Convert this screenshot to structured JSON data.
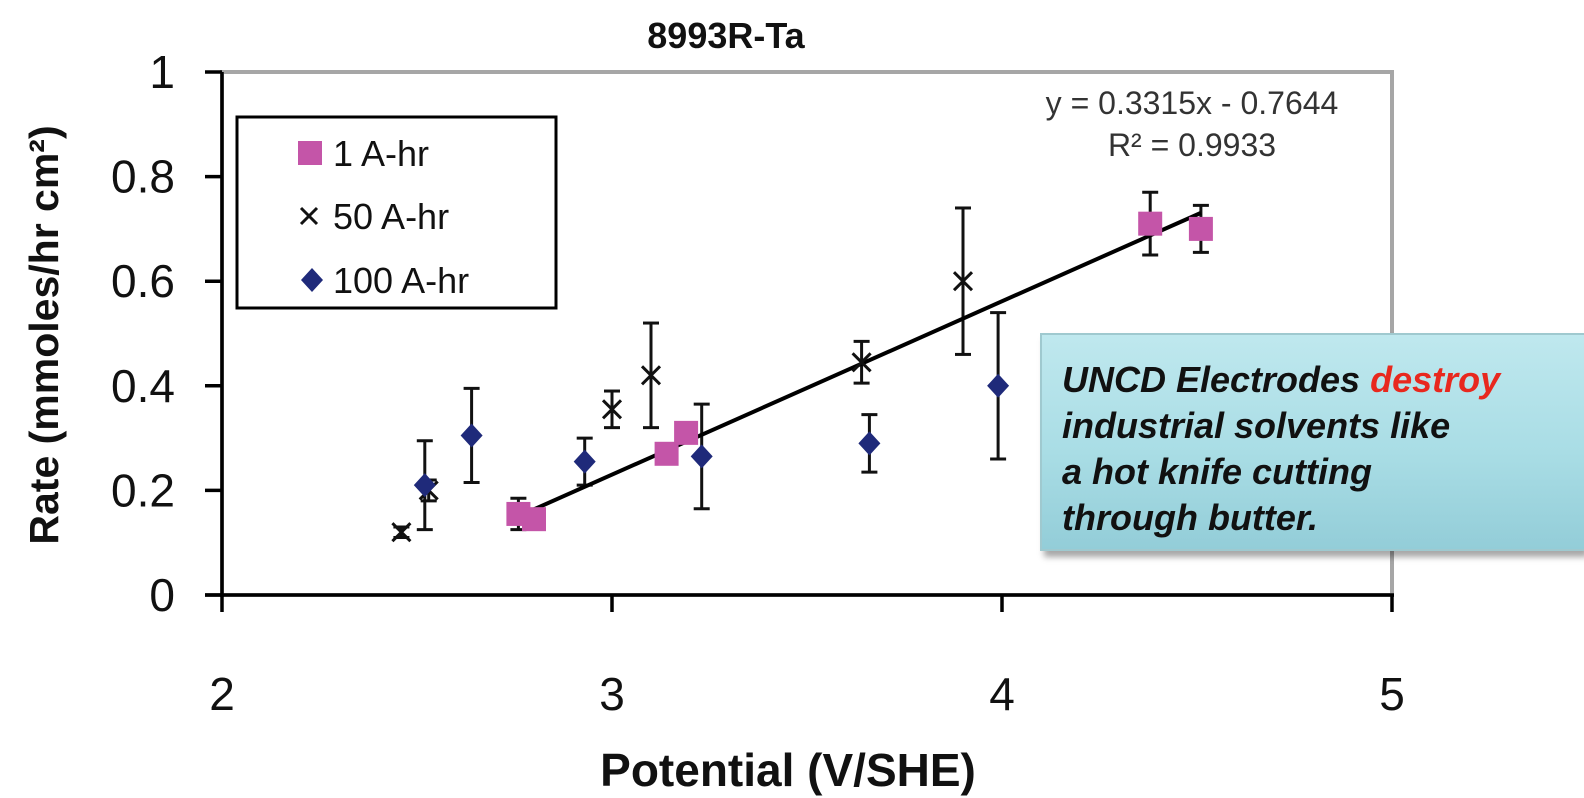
{
  "chart_data": {
    "type": "scatter",
    "title": "8993R-Ta",
    "xlabel": "Potential (V/SHE)",
    "ylabel": "Rate (mmoles/hr cm²)",
    "xlim": [
      2,
      5
    ],
    "ylim": [
      0,
      1
    ],
    "x_ticks": [
      "2",
      "3",
      "4",
      "5"
    ],
    "y_ticks": [
      "0",
      "0.2",
      "0.4",
      "0.6",
      "0.8",
      "1"
    ],
    "grid": false,
    "legend_position": "top-left",
    "series": [
      {
        "name": "1 A-hr",
        "marker": "square",
        "color": "#c455a8",
        "points": [
          {
            "x": 2.76,
            "y": 0.155,
            "err": 0.03
          },
          {
            "x": 2.8,
            "y": 0.145,
            "err": 0
          },
          {
            "x": 3.14,
            "y": 0.27,
            "err": 0
          },
          {
            "x": 3.19,
            "y": 0.31,
            "err": 0
          },
          {
            "x": 4.38,
            "y": 0.71,
            "err": 0.06
          },
          {
            "x": 4.51,
            "y": 0.7,
            "err": 0.045
          }
        ]
      },
      {
        "name": "50 A-hr",
        "marker": "x",
        "color": "#111111",
        "points": [
          {
            "x": 2.46,
            "y": 0.12,
            "err": 0.01
          },
          {
            "x": 2.53,
            "y": 0.2,
            "err": 0.02
          },
          {
            "x": 3.0,
            "y": 0.355,
            "err": 0.035
          },
          {
            "x": 3.1,
            "y": 0.42,
            "err": 0.1
          },
          {
            "x": 3.64,
            "y": 0.445,
            "err": 0.04
          },
          {
            "x": 3.9,
            "y": 0.6,
            "err": 0.14
          }
        ]
      },
      {
        "name": "100 A-hr",
        "marker": "diamond",
        "color": "#1f2a7a",
        "points": [
          {
            "x": 2.52,
            "y": 0.21,
            "err": 0.085
          },
          {
            "x": 2.64,
            "y": 0.305,
            "err": 0.09
          },
          {
            "x": 2.93,
            "y": 0.255,
            "err": 0.045
          },
          {
            "x": 3.23,
            "y": 0.265,
            "err": 0.1
          },
          {
            "x": 3.66,
            "y": 0.29,
            "err": 0.055
          },
          {
            "x": 3.99,
            "y": 0.4,
            "err": 0.14
          }
        ]
      }
    ],
    "trendline": {
      "slope": 0.3315,
      "intercept": -0.7644,
      "x_range": [
        2.76,
        4.51
      ],
      "equation": "y = 0.3315x  - 0.7644",
      "r_squared": "R² = 0.9933",
      "color": "#000000"
    },
    "annotation": {
      "line1_pre": "UNCD Electrodes ",
      "line1_highlight": "destroy",
      "line2": "industrial solvents like",
      "line3": "a hot knife cutting",
      "line4": "through butter.",
      "highlight_color": "#e8281e"
    }
  }
}
